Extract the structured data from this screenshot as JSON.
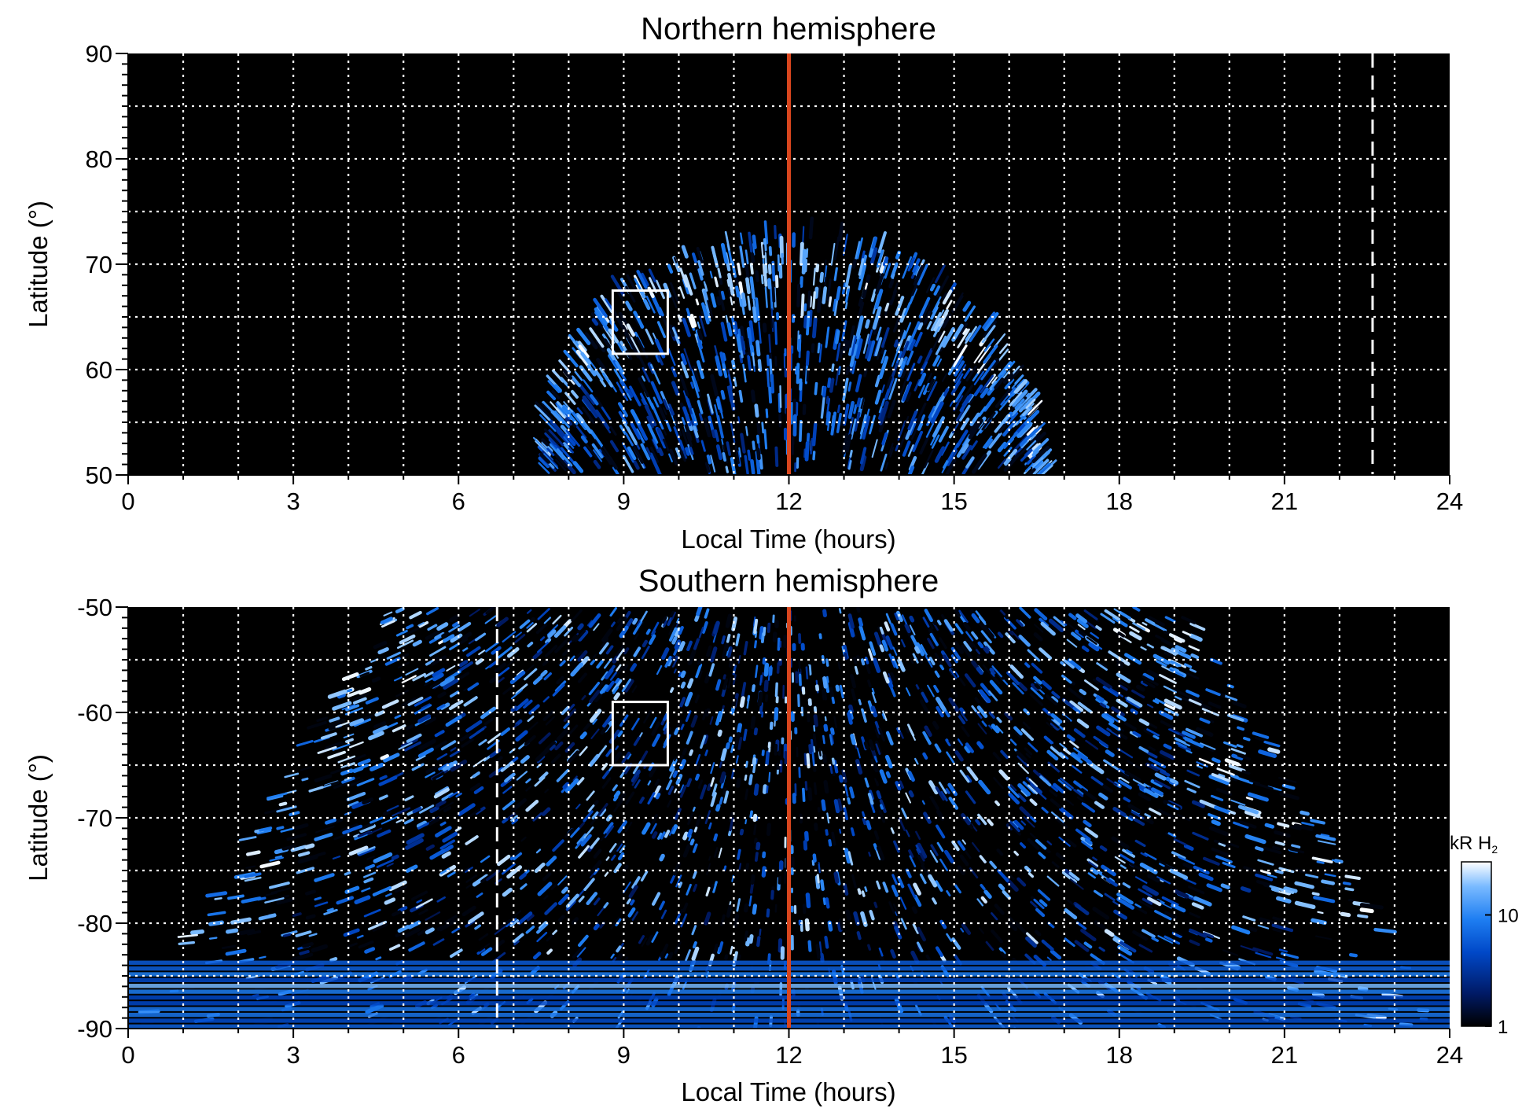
{
  "chart_data": [
    {
      "type": "heatmap",
      "title": "Northern hemisphere",
      "xlabel": "Local Time (hours)",
      "ylabel": "Latitude (°)",
      "xlim": [
        0,
        24
      ],
      "ylim": [
        50,
        90
      ],
      "x_ticks": [
        0,
        3,
        6,
        9,
        12,
        15,
        18,
        21,
        24
      ],
      "y_ticks": [
        50,
        60,
        70,
        80,
        90
      ],
      "x_tick_labels": [
        "0",
        "3",
        "6",
        "9",
        "12",
        "15",
        "18",
        "21",
        "24"
      ],
      "y_tick_labels": [
        "50",
        "60",
        "70",
        "80",
        "90"
      ],
      "grid": true,
      "grid_x_step": 1,
      "grid_y_step": 5,
      "noon_line_x": 12,
      "dashed_line_x": 22.6,
      "box": {
        "x": [
          8.8,
          9.8
        ],
        "y": [
          61.5,
          67.5
        ]
      },
      "emission_region": {
        "lt_range_at_50": [
          7.6,
          16.6
        ],
        "max_latitude": 73,
        "peak_latitude": 65
      }
    },
    {
      "type": "heatmap",
      "title": "Southern hemisphere",
      "xlabel": "Local Time (hours)",
      "ylabel": "Latitude (°)",
      "xlim": [
        0,
        24
      ],
      "ylim": [
        -90,
        -50
      ],
      "x_ticks": [
        0,
        3,
        6,
        9,
        12,
        15,
        18,
        21,
        24
      ],
      "y_ticks": [
        -90,
        -80,
        -70,
        -60,
        -50
      ],
      "x_tick_labels": [
        "0",
        "3",
        "6",
        "9",
        "12",
        "15",
        "18",
        "21",
        "24"
      ],
      "y_tick_labels": [
        "-90",
        "-80",
        "-70",
        "-60",
        "-50"
      ],
      "grid": true,
      "grid_x_step": 1,
      "grid_y_step": 5,
      "noon_line_x": 12,
      "dashed_line_x": 6.7,
      "box": {
        "x": [
          8.8,
          9.8
        ],
        "y": [
          -65,
          -59
        ]
      },
      "emission_region": {
        "lt_range_at_minus50": [
          4.9,
          19.3
        ],
        "lt_range_at_minus75": [
          0.2,
          23.6
        ],
        "oval_latitude": -75
      }
    }
  ],
  "colorbar": {
    "label_prefix": "kR H",
    "label_subscript": "2",
    "scale": "log",
    "range": [
      1,
      30
    ],
    "ticks": [
      1,
      10
    ],
    "tick_labels": [
      "1",
      "10"
    ],
    "colors": [
      "#000000",
      "#001a66",
      "#0048c8",
      "#1e7ef2",
      "#79baff",
      "#ffffff"
    ]
  }
}
